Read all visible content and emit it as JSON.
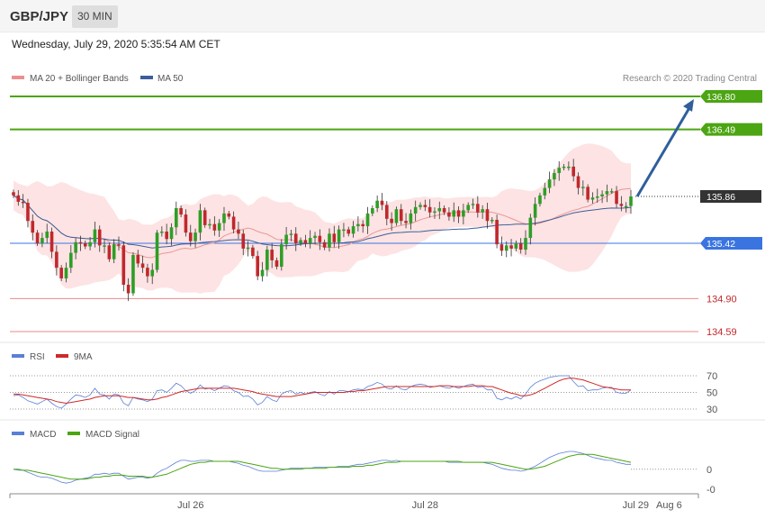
{
  "header": {
    "pair": "GBP/JPY",
    "timeframe": "30 MIN",
    "datetime": "Wednesday, July 29, 2020 5:35:54 AM CET"
  },
  "credit": "Research © 2020 Trading Central",
  "colors": {
    "up": "#2e9e26",
    "down": "#c0282c",
    "bands": "#fcd9d9",
    "ma20": "#e89898",
    "ma50": "#3c5f9c",
    "green_level": "#4ca512",
    "blue_level": "#3a74e0",
    "red_level": "#e88888",
    "arrow": "#2f5f9c",
    "rsi": "#5a7fd6",
    "rsi_ma": "#d02828",
    "macd": "#5a7fd6",
    "macd_signal": "#4ca512"
  },
  "legend": {
    "price": [
      {
        "label": "MA 20 + Bollinger Bands",
        "color": "#ec8f8f"
      },
      {
        "label": "MA 50",
        "color": "#3c5f9c"
      }
    ],
    "rsi": [
      {
        "label": "RSI",
        "color": "#5a7fd6"
      },
      {
        "label": "9MA",
        "color": "#d02828"
      }
    ],
    "macd": [
      {
        "label": "MACD",
        "color": "#5a7fd6"
      },
      {
        "label": "MACD Signal",
        "color": "#4ca512"
      }
    ]
  },
  "chart_data": {
    "type": "candlestick",
    "price_range": [
      134.5,
      137.0
    ],
    "levels": [
      {
        "label": "136.80",
        "value": 136.8,
        "kind": "resistance"
      },
      {
        "label": "136.49",
        "value": 136.49,
        "kind": "resistance"
      },
      {
        "label": "135.86",
        "value": 135.86,
        "kind": "last"
      },
      {
        "label": "135.42",
        "value": 135.42,
        "kind": "support"
      },
      {
        "label": "134.90",
        "value": 134.9,
        "kind": "minor"
      },
      {
        "label": "134.59",
        "value": 134.59,
        "kind": "minor"
      }
    ],
    "projection": {
      "from": 135.86,
      "to": 136.8
    },
    "closes": [
      135.87,
      135.81,
      135.8,
      135.63,
      135.52,
      135.42,
      135.47,
      135.53,
      135.34,
      135.19,
      135.09,
      135.19,
      135.33,
      135.43,
      135.42,
      135.39,
      135.43,
      135.55,
      135.4,
      135.4,
      135.27,
      135.41,
      135.4,
      135.03,
      134.95,
      135.31,
      135.23,
      135.19,
      135.11,
      135.17,
      135.52,
      135.53,
      135.46,
      135.57,
      135.75,
      135.69,
      135.52,
      135.44,
      135.52,
      135.73,
      135.59,
      135.6,
      135.54,
      135.61,
      135.7,
      135.67,
      135.55,
      135.51,
      135.37,
      135.38,
      135.3,
      135.11,
      135.17,
      135.36,
      135.26,
      135.2,
      135.41,
      135.5,
      135.51,
      135.42,
      135.45,
      135.42,
      135.47,
      135.49,
      135.43,
      135.38,
      135.51,
      135.43,
      135.55,
      135.55,
      135.51,
      135.58,
      135.6,
      135.58,
      135.7,
      135.75,
      135.82,
      135.78,
      135.65,
      135.61,
      135.74,
      135.63,
      135.61,
      135.7,
      135.76,
      135.78,
      135.76,
      135.71,
      135.72,
      135.75,
      135.71,
      135.67,
      135.73,
      135.67,
      135.73,
      135.78,
      135.79,
      135.71,
      135.74,
      135.63,
      135.64,
      135.41,
      135.35,
      135.4,
      135.37,
      135.42,
      135.36,
      135.47,
      135.66,
      135.79,
      135.87,
      135.94,
      136.02,
      136.08,
      136.13,
      136.14,
      136.14,
      136.05,
      135.94,
      135.95,
      135.83,
      135.85,
      135.86,
      135.88,
      135.91,
      135.91,
      135.79,
      135.77,
      135.77,
      135.86
    ],
    "rsi": {
      "rsi": [
        46,
        47,
        44,
        40,
        38,
        36,
        39,
        42,
        37,
        33,
        31,
        36,
        42,
        47,
        46,
        44,
        47,
        55,
        48,
        47,
        42,
        48,
        47,
        37,
        34,
        44,
        42,
        41,
        39,
        42,
        52,
        53,
        50,
        55,
        61,
        58,
        52,
        49,
        52,
        59,
        54,
        55,
        52,
        55,
        58,
        57,
        52,
        50,
        45,
        46,
        42,
        35,
        38,
        45,
        41,
        39,
        48,
        51,
        52,
        48,
        50,
        48,
        50,
        51,
        48,
        46,
        51,
        48,
        52,
        52,
        51,
        53,
        54,
        53,
        57,
        59,
        62,
        60,
        55,
        54,
        58,
        54,
        53,
        57,
        59,
        60,
        59,
        56,
        57,
        58,
        56,
        55,
        57,
        55,
        57,
        59,
        60,
        56,
        57,
        53,
        53,
        43,
        41,
        44,
        42,
        45,
        42,
        48,
        56,
        61,
        64,
        66,
        68,
        69,
        70,
        70,
        70,
        63,
        57,
        58,
        52,
        53,
        53,
        55,
        56,
        56,
        50,
        49,
        49,
        53
      ],
      "ma9": [
        48,
        48,
        47,
        46,
        45,
        44,
        43,
        42,
        41,
        39,
        38,
        37,
        38,
        39,
        40,
        41,
        42,
        44,
        45,
        46,
        46,
        46,
        46,
        45,
        44,
        44,
        43,
        42,
        41,
        41,
        42,
        44,
        45,
        47,
        49,
        51,
        52,
        53,
        54,
        55,
        55,
        55,
        55,
        55,
        55,
        55,
        55,
        54,
        53,
        52,
        51,
        49,
        48,
        47,
        46,
        45,
        45,
        45,
        45,
        46,
        47,
        48,
        49,
        50,
        50,
        50,
        50,
        50,
        50,
        50,
        51,
        51,
        52,
        52,
        53,
        54,
        55,
        56,
        57,
        57,
        57,
        57,
        57,
        57,
        57,
        57,
        57,
        57,
        57,
        58,
        58,
        58,
        57,
        57,
        57,
        57,
        58,
        58,
        58,
        57,
        57,
        55,
        53,
        51,
        49,
        48,
        46,
        46,
        47,
        49,
        52,
        55,
        58,
        61,
        64,
        66,
        67,
        67,
        66,
        65,
        63,
        61,
        59,
        57,
        56,
        55,
        54,
        53,
        53,
        53
      ],
      "levels": [
        70,
        50,
        30
      ]
    },
    "macd": {
      "macd": [
        0.0,
        -0.01,
        -0.01,
        -0.03,
        -0.05,
        -0.07,
        -0.08,
        -0.08,
        -0.09,
        -0.11,
        -0.13,
        -0.14,
        -0.13,
        -0.11,
        -0.1,
        -0.09,
        -0.08,
        -0.05,
        -0.05,
        -0.04,
        -0.05,
        -0.04,
        -0.04,
        -0.07,
        -0.1,
        -0.09,
        -0.08,
        -0.08,
        -0.09,
        -0.08,
        -0.04,
        -0.01,
        0.01,
        0.04,
        0.07,
        0.09,
        0.09,
        0.08,
        0.08,
        0.09,
        0.09,
        0.09,
        0.08,
        0.08,
        0.08,
        0.08,
        0.07,
        0.06,
        0.04,
        0.03,
        0.01,
        -0.01,
        -0.02,
        -0.02,
        -0.02,
        -0.02,
        -0.01,
        0.0,
        0.01,
        0.01,
        0.01,
        0.01,
        0.01,
        0.02,
        0.02,
        0.02,
        0.02,
        0.02,
        0.03,
        0.03,
        0.03,
        0.04,
        0.05,
        0.05,
        0.06,
        0.07,
        0.08,
        0.09,
        0.09,
        0.08,
        0.09,
        0.08,
        0.08,
        0.08,
        0.08,
        0.08,
        0.08,
        0.08,
        0.08,
        0.08,
        0.08,
        0.07,
        0.07,
        0.07,
        0.07,
        0.07,
        0.07,
        0.07,
        0.07,
        0.06,
        0.05,
        0.03,
        0.01,
        0.0,
        -0.01,
        -0.01,
        -0.02,
        -0.01,
        0.01,
        0.03,
        0.06,
        0.09,
        0.12,
        0.14,
        0.16,
        0.17,
        0.18,
        0.18,
        0.17,
        0.16,
        0.14,
        0.12,
        0.11,
        0.1,
        0.09,
        0.09,
        0.07,
        0.06,
        0.05,
        0.05
      ],
      "signal": [
        0.0,
        0.0,
        -0.01,
        -0.01,
        -0.02,
        -0.03,
        -0.04,
        -0.05,
        -0.06,
        -0.07,
        -0.08,
        -0.09,
        -0.1,
        -0.1,
        -0.1,
        -0.1,
        -0.09,
        -0.08,
        -0.08,
        -0.07,
        -0.07,
        -0.06,
        -0.06,
        -0.06,
        -0.07,
        -0.07,
        -0.07,
        -0.07,
        -0.08,
        -0.08,
        -0.07,
        -0.06,
        -0.05,
        -0.03,
        -0.01,
        0.01,
        0.03,
        0.05,
        0.06,
        0.07,
        0.07,
        0.08,
        0.08,
        0.08,
        0.08,
        0.08,
        0.08,
        0.08,
        0.07,
        0.06,
        0.05,
        0.04,
        0.03,
        0.02,
        0.01,
        0.01,
        0.0,
        0.0,
        0.0,
        0.0,
        0.0,
        0.01,
        0.01,
        0.01,
        0.01,
        0.01,
        0.02,
        0.02,
        0.02,
        0.02,
        0.02,
        0.03,
        0.03,
        0.03,
        0.04,
        0.04,
        0.05,
        0.06,
        0.07,
        0.07,
        0.07,
        0.08,
        0.08,
        0.08,
        0.08,
        0.08,
        0.08,
        0.08,
        0.08,
        0.08,
        0.08,
        0.08,
        0.08,
        0.08,
        0.07,
        0.07,
        0.07,
        0.07,
        0.07,
        0.07,
        0.07,
        0.06,
        0.05,
        0.04,
        0.03,
        0.02,
        0.01,
        0.0,
        0.0,
        0.01,
        0.02,
        0.03,
        0.05,
        0.07,
        0.09,
        0.11,
        0.13,
        0.14,
        0.15,
        0.15,
        0.15,
        0.15,
        0.14,
        0.13,
        0.12,
        0.11,
        0.1,
        0.09,
        0.08,
        0.07
      ],
      "levels": [
        {
          "label": "0",
          "value": 0
        },
        {
          "label": "-0",
          "value": -0.2
        }
      ],
      "range": [
        -0.22,
        0.28
      ]
    },
    "x_axis": [
      {
        "label": "Jul 26",
        "index": 37
      },
      {
        "label": "Jul 28",
        "index": 86
      },
      {
        "label": "Jul 29",
        "index": 130
      },
      {
        "label": "Aug 6",
        "index": 137
      }
    ]
  }
}
